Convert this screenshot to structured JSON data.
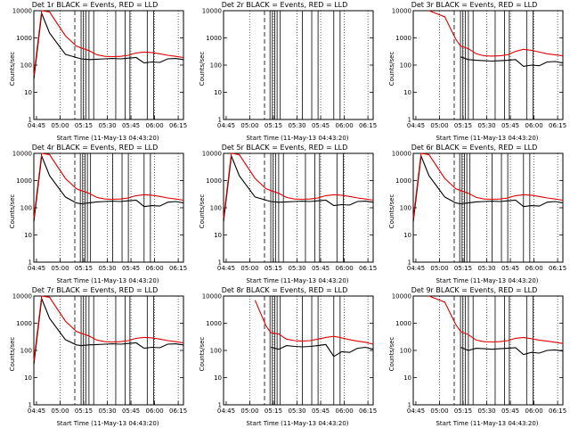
{
  "colors": {
    "events": "#000000",
    "lld": "#e00000",
    "axis": "#000000"
  },
  "chart_data": {
    "type": "line",
    "ylabel": "Counts/sec",
    "xlabel": "Start Time (11-May-13 04:43:20)",
    "x_ticks": [
      "04:45",
      "05:00",
      "05:15",
      "05:30",
      "05:45",
      "06:00",
      "06:15"
    ],
    "y_ticks": [
      "1",
      "10",
      "100",
      "1000",
      "10000"
    ],
    "yscale": "log",
    "ylim": [
      1,
      10000
    ],
    "xlim_minutes": [
      0,
      95
    ],
    "x": [
      0,
      5,
      10,
      20,
      27,
      30,
      35,
      40,
      45,
      50,
      55,
      60,
      65,
      70,
      75,
      80,
      85,
      90,
      95
    ],
    "panels": [
      {
        "title": "Det 1r BLACK = Events, RED = LLD",
        "series": [
          {
            "name": "Events",
            "values": [
              30,
              8000,
              1500,
              250,
              190,
              170,
              160,
              165,
              170,
              175,
              170,
              180,
              190,
              120,
              130,
              125,
              170,
              175,
              160
            ]
          },
          {
            "name": "LLD",
            "values": [
              40,
              10000,
              9000,
              1200,
              500,
              430,
              340,
              240,
              210,
              205,
              210,
              230,
              280,
              300,
              290,
              260,
              230,
              210,
              190
            ]
          }
        ]
      },
      {
        "title": "Det 2r BLACK = Events, RED = LLD",
        "series": []
      },
      {
        "title": "Det 3r BLACK = Events, RED = LLD",
        "series": [
          {
            "name": "Events",
            "values": [
              null,
              null,
              null,
              null,
              null,
              200,
              160,
              150,
              145,
              140,
              145,
              150,
              160,
              90,
              100,
              95,
              130,
              135,
              120
            ]
          },
          {
            "name": "LLD",
            "values": [
              null,
              null,
              10000,
              6000,
              900,
              500,
              400,
              260,
              220,
              215,
              220,
              240,
              320,
              380,
              350,
              300,
              260,
              240,
              220
            ]
          }
        ]
      },
      {
        "title": "Det 4r BLACK = Events, RED = LLD",
        "series": [
          {
            "name": "Events",
            "values": [
              30,
              8000,
              1500,
              250,
              150,
              140,
              150,
              165,
              170,
              175,
              170,
              180,
              190,
              110,
              120,
              115,
              160,
              170,
              150
            ]
          },
          {
            "name": "LLD",
            "values": [
              40,
              10000,
              9000,
              1200,
              500,
              430,
              340,
              240,
              210,
              205,
              210,
              230,
              280,
              300,
              290,
              260,
              230,
              210,
              190
            ]
          }
        ]
      },
      {
        "title": "Det 5r BLACK = Events, RED = LLD",
        "series": [
          {
            "name": "Events",
            "values": [
              30,
              8000,
              1500,
              250,
              190,
              170,
              160,
              165,
              170,
              175,
              170,
              180,
              190,
              120,
              130,
              125,
              170,
              175,
              160
            ]
          },
          {
            "name": "LLD",
            "values": [
              40,
              10000,
              9000,
              1200,
              500,
              430,
              340,
              240,
              210,
              205,
              210,
              230,
              280,
              300,
              290,
              260,
              230,
              210,
              190
            ]
          }
        ]
      },
      {
        "title": "Det 6r BLACK = Events, RED = LLD",
        "series": [
          {
            "name": "Events",
            "values": [
              30,
              8000,
              1500,
              250,
              150,
              140,
              150,
              165,
              170,
              175,
              170,
              180,
              190,
              110,
              120,
              115,
              160,
              170,
              150
            ]
          },
          {
            "name": "LLD",
            "values": [
              40,
              10000,
              9000,
              1200,
              500,
              430,
              340,
              240,
              210,
              205,
              210,
              230,
              280,
              300,
              290,
              260,
              230,
              210,
              190
            ]
          }
        ]
      },
      {
        "title": "Det 7r BLACK = Events, RED = LLD",
        "series": [
          {
            "name": "Events",
            "values": [
              30,
              8000,
              1500,
              250,
              160,
              150,
              160,
              165,
              170,
              175,
              170,
              180,
              190,
              120,
              130,
              125,
              170,
              175,
              160
            ]
          },
          {
            "name": "LLD",
            "values": [
              40,
              10000,
              9000,
              1200,
              500,
              430,
              340,
              240,
              210,
              205,
              210,
              230,
              280,
              300,
              290,
              260,
              230,
              210,
              190
            ]
          }
        ]
      },
      {
        "title": "Det 8r BLACK = Events, RED = LLD",
        "series": [
          {
            "name": "Events",
            "values": [
              null,
              null,
              null,
              null,
              null,
              130,
              110,
              150,
              140,
              135,
              140,
              150,
              165,
              60,
              90,
              85,
              120,
              130,
              110
            ]
          },
          {
            "name": "LLD",
            "values": [
              null,
              null,
              null,
              7000,
              800,
              450,
              400,
              260,
              230,
              220,
              230,
              260,
              300,
              330,
              290,
              250,
              220,
              200,
              170
            ]
          }
        ]
      },
      {
        "title": "Det 9r BLACK = Events, RED = LLD",
        "series": [
          {
            "name": "Events",
            "values": [
              null,
              null,
              null,
              null,
              null,
              130,
              100,
              120,
              115,
              110,
              115,
              120,
              125,
              70,
              85,
              80,
              100,
              105,
              95
            ]
          },
          {
            "name": "LLD",
            "values": [
              null,
              null,
              10000,
              6000,
              900,
              500,
              380,
              240,
              210,
              205,
              210,
              230,
              280,
              300,
              270,
              240,
              220,
              200,
              180
            ]
          }
        ]
      }
    ]
  }
}
